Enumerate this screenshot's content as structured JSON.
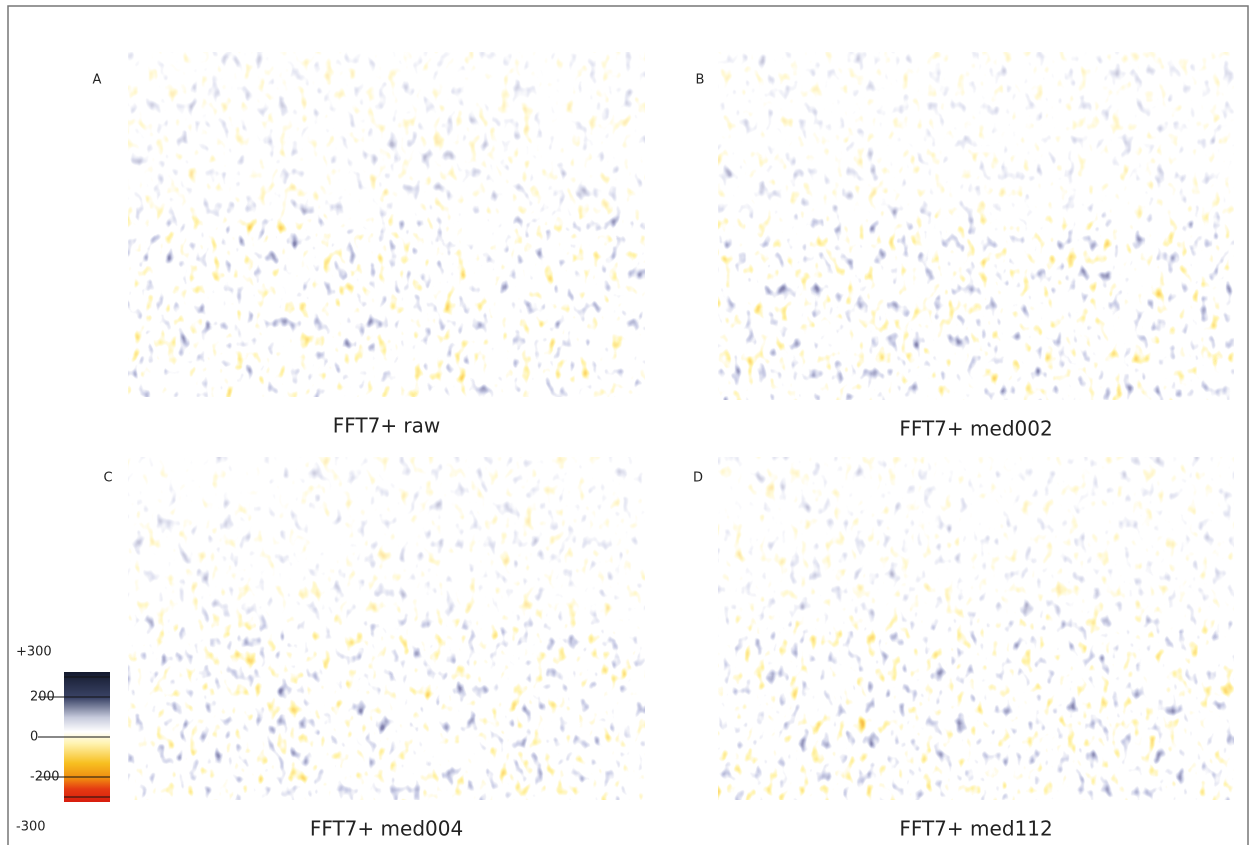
{
  "panels": [
    {
      "letter": "A",
      "caption": "FFT7+ raw"
    },
    {
      "letter": "B",
      "caption": "FFT7+ med002"
    },
    {
      "letter": "C",
      "caption": "FFT7+ med004"
    },
    {
      "letter": "D",
      "caption": "FFT7+ med112"
    }
  ],
  "colorbar": {
    "range": [
      -300,
      300
    ],
    "ticks": [
      {
        "value": 300,
        "label": "+300"
      },
      200,
      0,
      -200,
      -300
    ]
  }
}
